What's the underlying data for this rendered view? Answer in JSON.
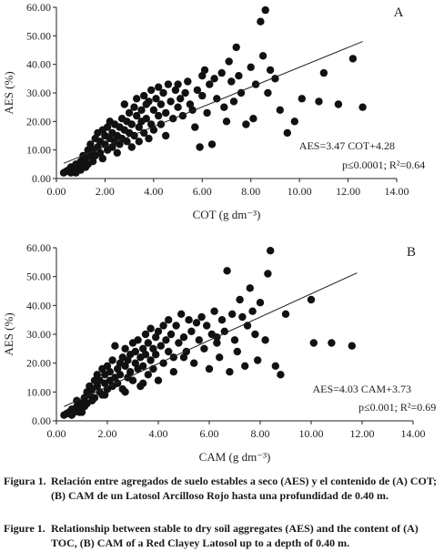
{
  "chart_data": [
    {
      "type": "scatter",
      "panel_label": "A",
      "xlabel": "COT (g dm⁻³)",
      "ylabel": "AES (%)",
      "xlim": [
        0,
        14
      ],
      "ylim": [
        0,
        60
      ],
      "xticks": [
        "0.00",
        "2.00",
        "4.00",
        "6.00",
        "8.00",
        "10.00",
        "12.00",
        "14.00"
      ],
      "yticks": [
        "0.00",
        "10.00",
        "20.00",
        "30.00",
        "40.00",
        "50.00",
        "60.00"
      ],
      "equation": "AES=3.47 COT+4.28",
      "stats": "p≤0.0001; R²=0.64",
      "fit": {
        "slope": 3.47,
        "intercept": 4.28,
        "x_range": [
          0.3,
          12.6
        ]
      },
      "marker_color": "#111111",
      "points": [
        [
          0.3,
          2
        ],
        [
          0.4,
          2.5
        ],
        [
          0.5,
          3
        ],
        [
          0.6,
          2
        ],
        [
          0.6,
          4
        ],
        [
          0.7,
          3
        ],
        [
          0.8,
          5
        ],
        [
          0.8,
          2
        ],
        [
          0.9,
          4
        ],
        [
          1.0,
          6
        ],
        [
          1.0,
          3
        ],
        [
          1.1,
          5
        ],
        [
          1.1,
          8
        ],
        [
          1.2,
          4
        ],
        [
          1.2,
          7
        ],
        [
          1.3,
          10
        ],
        [
          1.3,
          5
        ],
        [
          1.4,
          8
        ],
        [
          1.4,
          12
        ],
        [
          1.5,
          6
        ],
        [
          1.5,
          10
        ],
        [
          1.6,
          14
        ],
        [
          1.6,
          8
        ],
        [
          1.7,
          11
        ],
        [
          1.7,
          16
        ],
        [
          1.8,
          9
        ],
        [
          1.8,
          13
        ],
        [
          1.9,
          17
        ],
        [
          1.9,
          7
        ],
        [
          2.0,
          12
        ],
        [
          2.0,
          15
        ],
        [
          2.1,
          18
        ],
        [
          2.1,
          10
        ],
        [
          2.2,
          14
        ],
        [
          2.2,
          20
        ],
        [
          2.3,
          11
        ],
        [
          2.3,
          16
        ],
        [
          2.4,
          13
        ],
        [
          2.4,
          19
        ],
        [
          2.5,
          9
        ],
        [
          2.5,
          15
        ],
        [
          2.6,
          12
        ],
        [
          2.6,
          18
        ],
        [
          2.7,
          21
        ],
        [
          2.7,
          14
        ],
        [
          2.8,
          17
        ],
        [
          2.8,
          26
        ],
        [
          2.9,
          13
        ],
        [
          2.9,
          20
        ],
        [
          3.0,
          16
        ],
        [
          3.0,
          23
        ],
        [
          3.1,
          11
        ],
        [
          3.1,
          19
        ],
        [
          3.2,
          25
        ],
        [
          3.2,
          15
        ],
        [
          3.3,
          22
        ],
        [
          3.3,
          28
        ],
        [
          3.4,
          18
        ],
        [
          3.4,
          13
        ],
        [
          3.5,
          24
        ],
        [
          3.5,
          20
        ],
        [
          3.6,
          29
        ],
        [
          3.6,
          16
        ],
        [
          3.7,
          26
        ],
        [
          3.7,
          21
        ],
        [
          3.8,
          14
        ],
        [
          3.8,
          27
        ],
        [
          3.9,
          19
        ],
        [
          3.9,
          31
        ],
        [
          4.0,
          24
        ],
        [
          4.0,
          17
        ],
        [
          4.1,
          28
        ],
        [
          4.2,
          22
        ],
        [
          4.2,
          32
        ],
        [
          4.3,
          26
        ],
        [
          4.3,
          19
        ],
        [
          4.4,
          30
        ],
        [
          4.5,
          23
        ],
        [
          4.5,
          15
        ],
        [
          4.6,
          33
        ],
        [
          4.7,
          27
        ],
        [
          4.8,
          21
        ],
        [
          4.9,
          31
        ],
        [
          5.0,
          25
        ],
        [
          5.0,
          33
        ],
        [
          5.1,
          28
        ],
        [
          5.2,
          22
        ],
        [
          5.3,
          30
        ],
        [
          5.4,
          34
        ],
        [
          5.5,
          26
        ],
        [
          5.6,
          24
        ],
        [
          5.7,
          18
        ],
        [
          5.8,
          31
        ],
        [
          5.9,
          11
        ],
        [
          6.0,
          36
        ],
        [
          6.0,
          29
        ],
        [
          6.1,
          38
        ],
        [
          6.2,
          23
        ],
        [
          6.3,
          33
        ],
        [
          6.4,
          12
        ],
        [
          6.5,
          35
        ],
        [
          6.6,
          28
        ],
        [
          6.8,
          37
        ],
        [
          6.9,
          25
        ],
        [
          7.0,
          20
        ],
        [
          7.1,
          41
        ],
        [
          7.2,
          34
        ],
        [
          7.3,
          27
        ],
        [
          7.4,
          46
        ],
        [
          7.5,
          36
        ],
        [
          7.6,
          30
        ],
        [
          7.8,
          19
        ],
        [
          8.0,
          39
        ],
        [
          8.1,
          21
        ],
        [
          8.2,
          33
        ],
        [
          8.4,
          55
        ],
        [
          8.5,
          43
        ],
        [
          8.6,
          59
        ],
        [
          8.7,
          30
        ],
        [
          8.8,
          38
        ],
        [
          9.0,
          35
        ],
        [
          9.2,
          24
        ],
        [
          9.5,
          16
        ],
        [
          9.8,
          20
        ],
        [
          10.1,
          28
        ],
        [
          10.8,
          27
        ],
        [
          11.0,
          37
        ],
        [
          11.6,
          26
        ],
        [
          12.2,
          42
        ],
        [
          12.6,
          25
        ]
      ]
    },
    {
      "type": "scatter",
      "panel_label": "B",
      "xlabel": "CAM (g dm⁻³)",
      "ylabel": "AES (%)",
      "xlim": [
        0,
        14
      ],
      "ylim": [
        0,
        60
      ],
      "xticks": [
        "0.00",
        "2.00",
        "4.00",
        "6.00",
        "8.00",
        "10.00",
        "12.00",
        "14.00"
      ],
      "yticks": [
        "0.00",
        "10.00",
        "20.00",
        "30.00",
        "40.00",
        "50.00",
        "60.00"
      ],
      "equation": "AES=4.03 CAM+3.73",
      "stats": "p≤0.001; R²=0.69",
      "fit": {
        "slope": 4.03,
        "intercept": 3.73,
        "x_range": [
          0.3,
          11.8
        ]
      },
      "marker_color": "#111111",
      "points": [
        [
          0.3,
          2
        ],
        [
          0.4,
          2.5
        ],
        [
          0.5,
          3
        ],
        [
          0.6,
          2
        ],
        [
          0.6,
          4
        ],
        [
          0.7,
          3
        ],
        [
          0.8,
          5
        ],
        [
          0.8,
          7
        ],
        [
          0.9,
          4
        ],
        [
          1.0,
          6
        ],
        [
          1.0,
          3
        ],
        [
          1.1,
          8
        ],
        [
          1.1,
          5
        ],
        [
          1.2,
          10
        ],
        [
          1.2,
          6
        ],
        [
          1.3,
          9
        ],
        [
          1.3,
          12
        ],
        [
          1.4,
          7
        ],
        [
          1.4,
          11
        ],
        [
          1.5,
          14
        ],
        [
          1.5,
          8
        ],
        [
          1.6,
          12
        ],
        [
          1.6,
          16
        ],
        [
          1.7,
          10
        ],
        [
          1.7,
          14
        ],
        [
          1.8,
          18
        ],
        [
          1.8,
          9
        ],
        [
          1.9,
          13
        ],
        [
          1.9,
          16
        ],
        [
          2.0,
          11
        ],
        [
          2.0,
          19
        ],
        [
          2.1,
          14
        ],
        [
          2.1,
          17
        ],
        [
          2.2,
          12
        ],
        [
          2.2,
          21
        ],
        [
          2.3,
          15
        ],
        [
          2.3,
          26
        ],
        [
          2.4,
          18
        ],
        [
          2.4,
          13
        ],
        [
          2.5,
          20
        ],
        [
          2.5,
          16
        ],
        [
          2.6,
          22
        ],
        [
          2.6,
          11
        ],
        [
          2.7,
          19
        ],
        [
          2.7,
          25
        ],
        [
          2.8,
          15
        ],
        [
          2.8,
          21
        ],
        [
          2.9,
          23
        ],
        [
          2.9,
          17
        ],
        [
          3.0,
          27
        ],
        [
          3.0,
          14
        ],
        [
          3.1,
          20
        ],
        [
          3.1,
          24
        ],
        [
          3.2,
          18
        ],
        [
          3.2,
          28
        ],
        [
          3.3,
          22
        ],
        [
          3.3,
          12
        ],
        [
          3.4,
          25
        ],
        [
          3.4,
          19
        ],
        [
          3.5,
          30
        ],
        [
          3.5,
          23
        ],
        [
          3.6,
          16
        ],
        [
          3.6,
          27
        ],
        [
          3.7,
          21
        ],
        [
          3.7,
          32
        ],
        [
          3.8,
          25
        ],
        [
          3.8,
          18
        ],
        [
          3.9,
          29
        ],
        [
          3.9,
          23
        ],
        [
          4.0,
          31
        ],
        [
          4.0,
          14
        ],
        [
          4.1,
          26
        ],
        [
          4.2,
          33
        ],
        [
          4.2,
          20
        ],
        [
          4.3,
          28
        ],
        [
          4.4,
          24
        ],
        [
          4.4,
          35
        ],
        [
          4.5,
          30
        ],
        [
          4.6,
          22
        ],
        [
          4.7,
          33
        ],
        [
          4.8,
          27
        ],
        [
          4.9,
          37
        ],
        [
          5.0,
          29
        ],
        [
          5.1,
          24
        ],
        [
          5.2,
          35
        ],
        [
          5.3,
          31
        ],
        [
          5.4,
          20
        ],
        [
          5.5,
          34
        ],
        [
          5.6,
          28
        ],
        [
          5.7,
          36
        ],
        [
          5.8,
          25
        ],
        [
          5.9,
          33
        ],
        [
          6.0,
          18
        ],
        [
          6.1,
          30
        ],
        [
          6.2,
          38
        ],
        [
          6.3,
          27
        ],
        [
          6.4,
          22
        ],
        [
          6.5,
          35
        ],
        [
          6.6,
          31
        ],
        [
          6.7,
          52
        ],
        [
          6.8,
          17
        ],
        [
          6.9,
          37
        ],
        [
          7.0,
          28
        ],
        [
          7.1,
          24
        ],
        [
          7.2,
          42
        ],
        [
          7.3,
          36
        ],
        [
          7.4,
          19
        ],
        [
          7.5,
          33
        ],
        [
          7.6,
          46
        ],
        [
          7.7,
          38
        ],
        [
          7.8,
          30
        ],
        [
          8.0,
          41
        ],
        [
          8.2,
          28
        ],
        [
          8.3,
          51
        ],
        [
          8.4,
          59
        ],
        [
          8.6,
          19
        ],
        [
          8.8,
          16
        ],
        [
          9.0,
          37
        ],
        [
          10.0,
          42
        ],
        [
          10.1,
          27
        ],
        [
          10.8,
          27
        ],
        [
          11.6,
          26
        ],
        [
          7.9,
          21
        ],
        [
          6.3,
          29
        ],
        [
          5.0,
          22
        ],
        [
          4.6,
          17
        ],
        [
          3.4,
          13
        ],
        [
          2.7,
          10
        ],
        [
          1.9,
          9
        ],
        [
          0.9,
          3
        ]
      ]
    }
  ],
  "captions": {
    "es_label": "Figura 1.",
    "es_text": "Relación entre agregados de suelo estables a seco (AES) y el contenido de (A) COT; (B) CAM de un Latosol Arcilloso Rojo hasta una profundidad de 0.40 m.",
    "en_label": "Figure 1.",
    "en_text": "Relationship between stable to dry soil aggregates (AES) and the content of (A) TOC, (B) CAM of a Red Clayey Latosol up to a depth of 0.40 m."
  }
}
